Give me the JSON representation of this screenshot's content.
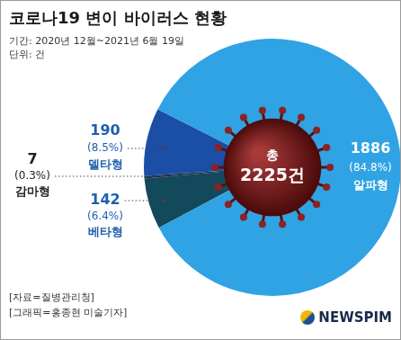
{
  "chart_data": {
    "type": "pie",
    "title": "코로나19 변이 바이러스 현황",
    "subtitle": [
      "기간: 2020년 12월~2021년 6월 19일",
      "단위: 건"
    ],
    "categories": [
      "베타형",
      "감마형",
      "델타형",
      "알파형"
    ],
    "values": [
      142,
      7,
      190,
      1886
    ],
    "percent_labels": [
      "(6.4%)",
      "(0.3%)",
      "(8.5%)",
      "(84.8%)"
    ],
    "colors": [
      "#124a5c",
      "#1b3346",
      "#1b4fa6",
      "#2fa3e4"
    ],
    "data_labels": true,
    "center_label": [
      "총",
      "2225건"
    ],
    "source": [
      "[자료=질병관리청]",
      "[그래픽=홍종현 미술기자]"
    ],
    "logo": "NEWSPIM"
  }
}
